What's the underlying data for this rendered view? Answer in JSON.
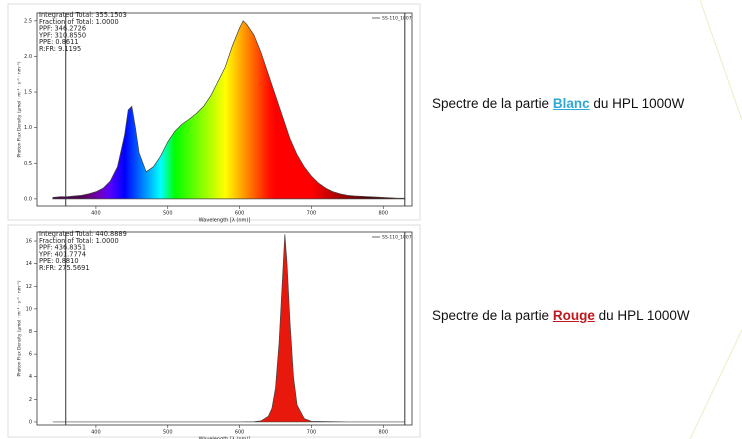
{
  "chart_data": [
    {
      "type": "area",
      "xlabel": "Wavelength [λ (nm)]",
      "ylabel": "Photon Flux Density (µmol · m⁻² · s⁻¹ · nm⁻¹)",
      "annotations": [
        "Integrated Total: 355.1503",
        "Fraction of Total: 1.0000",
        "PPF: 346.2726",
        "YPF: 310.8550",
        "PPE: 0.8611",
        "R:FR: 9.1195"
      ],
      "fill": "spectrum",
      "x": [
        340,
        350,
        360,
        370,
        380,
        390,
        400,
        410,
        420,
        430,
        440,
        445,
        450,
        455,
        460,
        470,
        480,
        490,
        500,
        510,
        520,
        530,
        540,
        550,
        560,
        570,
        580,
        590,
        600,
        605,
        610,
        620,
        630,
        640,
        650,
        660,
        670,
        680,
        690,
        700,
        710,
        720,
        730,
        740,
        750,
        760,
        780,
        800,
        820,
        830
      ],
      "series": [
        {
          "name": "SS-110_1007",
          "color": "#444444",
          "values": [
            0.02,
            0.03,
            0.03,
            0.04,
            0.05,
            0.07,
            0.1,
            0.15,
            0.25,
            0.45,
            0.9,
            1.25,
            1.3,
            1.0,
            0.65,
            0.38,
            0.45,
            0.6,
            0.8,
            0.95,
            1.05,
            1.12,
            1.2,
            1.3,
            1.45,
            1.65,
            1.85,
            2.15,
            2.4,
            2.5,
            2.45,
            2.3,
            2.05,
            1.75,
            1.45,
            1.15,
            0.85,
            0.62,
            0.45,
            0.32,
            0.22,
            0.15,
            0.1,
            0.07,
            0.05,
            0.04,
            0.03,
            0.02,
            0.01,
            0.01
          ]
        }
      ],
      "vlines": [
        358,
        830
      ],
      "xlim": [
        318,
        840
      ],
      "xticks": [
        400,
        500,
        600,
        700,
        800
      ],
      "ylim": [
        -0.1,
        2.61
      ],
      "yticks": [
        {
          "value": 0,
          "label": "0.0"
        },
        0.5,
        {
          "value": 1,
          "label": "1.0"
        },
        1.5,
        {
          "value": 2,
          "label": "2.0"
        },
        2.5
      ]
    },
    {
      "type": "area",
      "xlabel": "Wavelength [λ (nm)]",
      "ylabel": "Photon Flux Density (µmol · m⁻² · s⁻¹ · nm⁻¹)",
      "annotations": [
        "Integrated Total: 440.8889",
        "Fraction of Total: 1.0000",
        "PPF: 436.8351",
        "YPF: 401.7774",
        "PPE: 0.8810",
        "R:FR: 275.5691"
      ],
      "fill": "#e8180c",
      "x": [
        340,
        400,
        500,
        600,
        620,
        630,
        640,
        645,
        650,
        655,
        660,
        663,
        666,
        670,
        675,
        680,
        690,
        700,
        750,
        830
      ],
      "series": [
        {
          "name": "SS-110_1007",
          "color": "#444444",
          "values": [
            0,
            0,
            0,
            0,
            0.02,
            0.1,
            0.5,
            1.2,
            3,
            7,
            13,
            16.6,
            14,
            9,
            4,
            1.5,
            0.3,
            0.05,
            0,
            0
          ]
        }
      ],
      "vlines": [
        358,
        830
      ],
      "xlim": [
        318,
        840
      ],
      "xticks": [
        400,
        500,
        600,
        700,
        800
      ],
      "ylim": [
        -0.27,
        16.8
      ],
      "yticks": [
        0,
        2,
        4,
        6,
        8,
        10,
        12,
        14,
        16
      ]
    }
  ],
  "captions": [
    {
      "prefix": "Spectre de la partie",
      "highlight": "Blanc",
      "highlight_color": "#2fa8d8",
      "suffix": "du HPL 1000W"
    },
    {
      "prefix": "Spectre de la partie",
      "highlight": "Rouge",
      "highlight_color": "#c0181c",
      "suffix": "du HPL 1000W"
    }
  ]
}
